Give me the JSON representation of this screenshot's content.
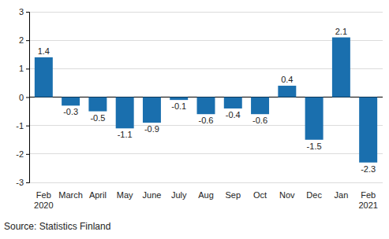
{
  "chart_data": {
    "type": "bar",
    "categories": [
      "Feb\n2020",
      "March",
      "April",
      "May",
      "June",
      "July",
      "Aug",
      "Sep",
      "Oct",
      "Nov",
      "Dec",
      "Jan",
      "Feb\n2021"
    ],
    "values": [
      1.4,
      -0.3,
      -0.5,
      -1.1,
      -0.9,
      -0.1,
      -0.6,
      -0.4,
      -0.6,
      0.4,
      -1.5,
      2.1,
      -2.3
    ],
    "color": "#1a6fae",
    "ylim": [
      -3,
      3
    ],
    "yticks": [
      -3,
      -2,
      -1,
      0,
      1,
      2,
      3
    ],
    "grid": true,
    "data_labels": true,
    "source": "Source: Statistics Finland"
  }
}
